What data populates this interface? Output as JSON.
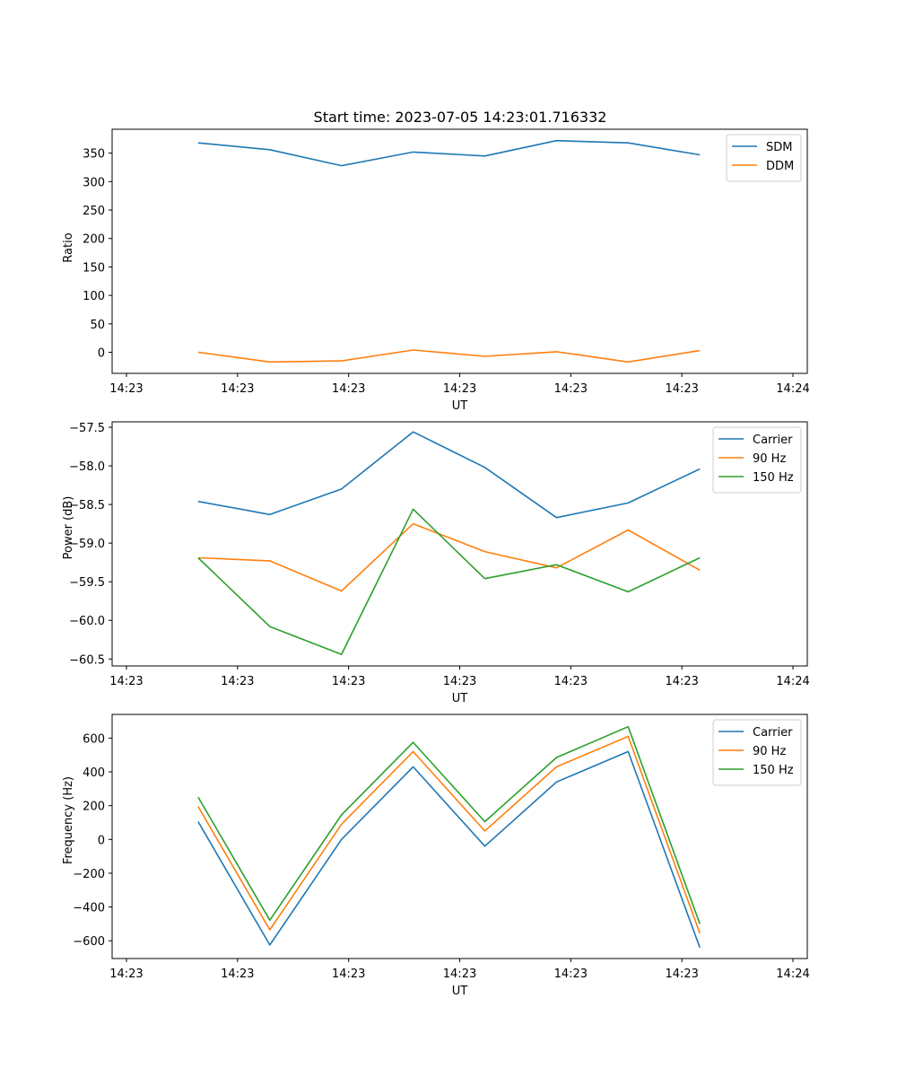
{
  "figure": {
    "title": "Start time: 2023-07-05 14:23:01.716332"
  },
  "chart_data": [
    {
      "type": "line",
      "title": "Start time: 2023-07-05 14:23:01.716332",
      "xlabel": "UT",
      "ylabel": "Ratio",
      "x": [
        1,
        2,
        3,
        4,
        5,
        6,
        7,
        8
      ],
      "xlim": [
        -0.2,
        9.5
      ],
      "xticks": [
        0,
        1.55,
        3.1,
        4.65,
        6.2,
        7.75,
        9.3
      ],
      "xtick_labels": [
        "14:23",
        "14:23",
        "14:23",
        "14:23",
        "14:23",
        "14:23",
        "14:24"
      ],
      "ylim": [
        -37,
        392
      ],
      "yticks": [
        0,
        50,
        100,
        150,
        200,
        250,
        300,
        350
      ],
      "ytick_labels": [
        "0",
        "50",
        "100",
        "150",
        "200",
        "250",
        "300",
        "350"
      ],
      "legend": "top-right",
      "series": [
        {
          "name": "SDM",
          "color": "#1f77b4",
          "values": [
            368,
            356,
            328,
            352,
            345,
            372,
            368,
            347
          ]
        },
        {
          "name": "DDM",
          "color": "#ff7f0e",
          "values": [
            0,
            -17,
            -15,
            4,
            -7,
            1,
            -17,
            3
          ]
        }
      ]
    },
    {
      "type": "line",
      "title": "",
      "xlabel": "UT",
      "ylabel": "Power (dB)",
      "x": [
        1,
        2,
        3,
        4,
        5,
        6,
        7,
        8
      ],
      "xlim": [
        -0.2,
        9.5
      ],
      "xticks": [
        0,
        1.55,
        3.1,
        4.65,
        6.2,
        7.75,
        9.3
      ],
      "xtick_labels": [
        "14:23",
        "14:23",
        "14:23",
        "14:23",
        "14:23",
        "14:23",
        "14:24"
      ],
      "ylim": [
        -60.59,
        -57.43
      ],
      "yticks": [
        -60.5,
        -60.0,
        -59.5,
        -59.0,
        -58.5,
        -58.0,
        -57.5
      ],
      "ytick_labels": [
        "−60.5",
        "−60.0",
        "−59.5",
        "−59.0",
        "−58.5",
        "−58.0",
        "−57.5"
      ],
      "legend": "top-right",
      "series": [
        {
          "name": "Carrier",
          "color": "#1f77b4",
          "values": [
            -58.46,
            -58.63,
            -58.3,
            -57.56,
            -58.02,
            -58.67,
            -58.48,
            -58.04
          ]
        },
        {
          "name": "90 Hz",
          "color": "#ff7f0e",
          "values": [
            -59.19,
            -59.23,
            -59.62,
            -58.75,
            -59.11,
            -59.32,
            -58.83,
            -59.35
          ]
        },
        {
          "name": "150 Hz",
          "color": "#2ca02c",
          "values": [
            -59.19,
            -60.08,
            -60.44,
            -58.56,
            -59.46,
            -59.28,
            -59.63,
            -59.19
          ]
        }
      ]
    },
    {
      "type": "line",
      "title": "",
      "xlabel": "UT",
      "ylabel": "Frequency (Hz)",
      "x": [
        1,
        2,
        3,
        4,
        5,
        6,
        7,
        8
      ],
      "xlim": [
        -0.2,
        9.5
      ],
      "xticks": [
        0,
        1.55,
        3.1,
        4.65,
        6.2,
        7.75,
        9.3
      ],
      "xtick_labels": [
        "14:23",
        "14:23",
        "14:23",
        "14:23",
        "14:23",
        "14:23",
        "14:24"
      ],
      "ylim": [
        -705,
        740
      ],
      "yticks": [
        -600,
        -400,
        -200,
        0,
        200,
        400,
        600
      ],
      "ytick_labels": [
        "−600",
        "−400",
        "−200",
        "0",
        "200",
        "400",
        "600"
      ],
      "legend": "top-right",
      "series": [
        {
          "name": "Carrier",
          "color": "#1f77b4",
          "values": [
            105,
            -625,
            0,
            430,
            -40,
            340,
            520,
            -640
          ]
        },
        {
          "name": "90 Hz",
          "color": "#ff7f0e",
          "values": [
            195,
            -535,
            90,
            520,
            50,
            430,
            610,
            -555
          ]
        },
        {
          "name": "150 Hz",
          "color": "#2ca02c",
          "values": [
            250,
            -478,
            145,
            575,
            105,
            485,
            667,
            -500
          ]
        }
      ]
    }
  ]
}
